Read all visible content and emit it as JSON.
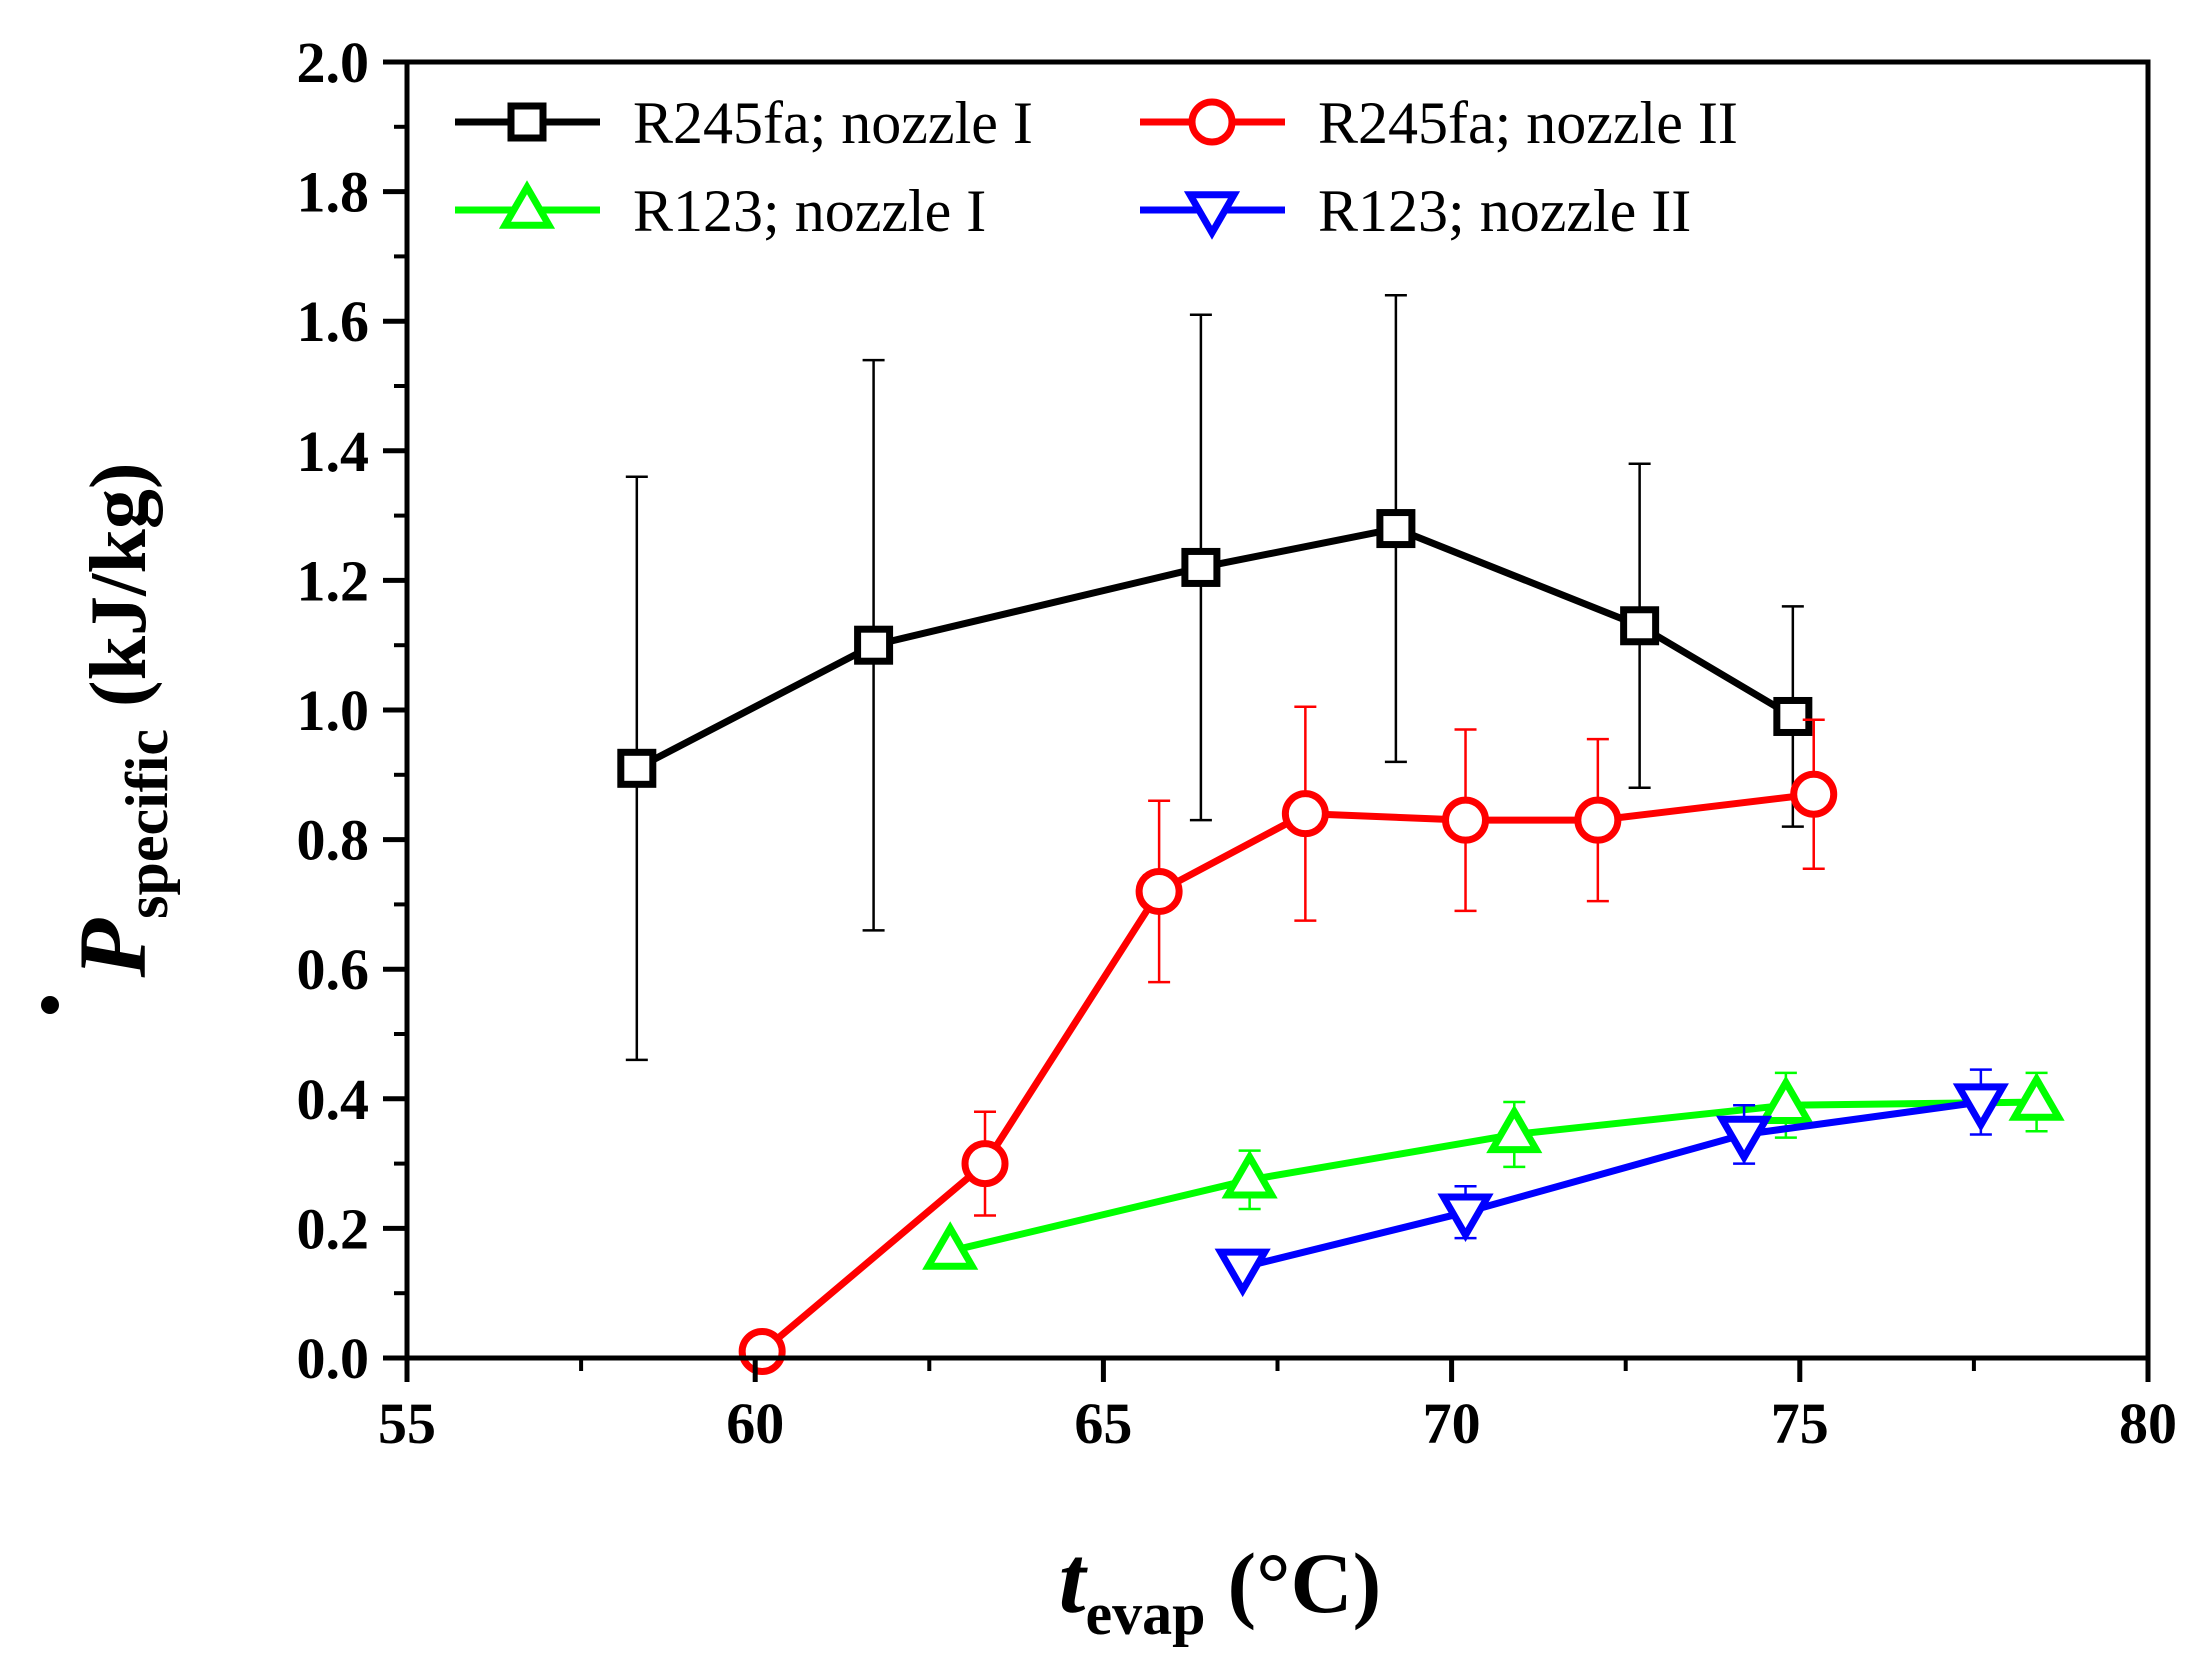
{
  "chart_data": {
    "type": "line",
    "title": "",
    "xlabel": {
      "main": "t",
      "subscript": "evap",
      "unit": "(°C)"
    },
    "ylabel": {
      "main": "P",
      "subscript": "specific",
      "unit": "(kJ/kg)"
    },
    "xlim": [
      55,
      80
    ],
    "ylim": [
      0.0,
      2.0
    ],
    "xticks": [
      55,
      60,
      65,
      70,
      75,
      80
    ],
    "yticks": [
      0.0,
      0.2,
      0.4,
      0.6,
      0.8,
      1.0,
      1.2,
      1.4,
      1.6,
      1.8,
      2.0
    ],
    "xtick_labels": [
      "55",
      "60",
      "65",
      "70",
      "75",
      "80"
    ],
    "ytick_labels": [
      "0.0",
      "0.2",
      "0.4",
      "0.6",
      "0.8",
      "1.0",
      "1.2",
      "1.4",
      "1.6",
      "1.8",
      "2.0"
    ],
    "grid": false,
    "legend_position": "top-left",
    "series": [
      {
        "name": "R245fa; nozzle I",
        "color": "#000000",
        "marker": "square",
        "x": [
          58.3,
          61.7,
          66.4,
          69.2,
          72.7,
          74.9
        ],
        "y": [
          0.91,
          1.1,
          1.22,
          1.28,
          1.13,
          0.99
        ],
        "err": [
          0.45,
          0.44,
          0.39,
          0.36,
          0.25,
          0.17
        ]
      },
      {
        "name": "R245fa; nozzle II",
        "color": "#ff0000",
        "marker": "circle",
        "x": [
          60.1,
          63.3,
          65.8,
          67.9,
          70.2,
          72.1,
          75.2
        ],
        "y": [
          0.01,
          0.3,
          0.72,
          0.84,
          0.83,
          0.83,
          0.87
        ],
        "err": [
          0.0,
          0.08,
          0.14,
          0.165,
          0.14,
          0.125,
          0.115
        ]
      },
      {
        "name": "R123; nozzle I",
        "color": "#00ff00",
        "marker": "triangle-up",
        "x": [
          62.8,
          67.1,
          70.9,
          74.8,
          78.4
        ],
        "y": [
          0.165,
          0.275,
          0.345,
          0.39,
          0.395
        ],
        "err": [
          0.0,
          0.045,
          0.05,
          0.05,
          0.045
        ]
      },
      {
        "name": "R123; nozzle II",
        "color": "#0000ff",
        "marker": "triangle-down",
        "x": [
          67.0,
          70.2,
          74.2,
          77.6
        ],
        "y": [
          0.14,
          0.225,
          0.345,
          0.395
        ],
        "err": [
          0.0,
          0.04,
          0.045,
          0.05
        ]
      }
    ]
  }
}
